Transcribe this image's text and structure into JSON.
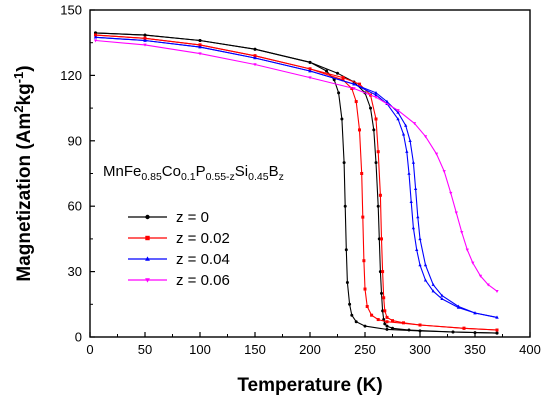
{
  "chart_data": {
    "type": "line",
    "title": "",
    "xlabel": "Temperature (K)",
    "ylabel": "Magnetization (Am",
    "ylabel_sup1": "2",
    "ylabel_mid": "kg",
    "ylabel_sup2": "-1",
    "ylabel_end": ")",
    "xlim": [
      0,
      400
    ],
    "ylim": [
      0,
      150
    ],
    "xticks": [
      0,
      50,
      100,
      150,
      200,
      250,
      300,
      350,
      400
    ],
    "yticks": [
      0,
      30,
      60,
      90,
      120,
      150
    ],
    "grid": false,
    "legend_position": "middle-left",
    "annotation": {
      "parts": [
        {
          "t": "MnFe",
          "sub": false
        },
        {
          "t": "0.85",
          "sub": true
        },
        {
          "t": "Co",
          "sub": false
        },
        {
          "t": "0.1",
          "sub": true
        },
        {
          "t": "P",
          "sub": false
        },
        {
          "t": "0.55-z",
          "sub": true
        },
        {
          "t": "Si",
          "sub": false
        },
        {
          "t": "0.45",
          "sub": true
        },
        {
          "t": "B",
          "sub": false
        },
        {
          "t": "z",
          "sub": true
        }
      ]
    },
    "series": [
      {
        "name": "z = 0",
        "color": "#000000",
        "marker": "circle",
        "branches": [
          {
            "x": [
              5,
              50,
              100,
              150,
              200,
              215,
              222,
              226,
              229,
              231,
              232,
              233,
              234,
              236,
              238,
              242,
              250,
              270,
              300,
              330,
              350,
              370
            ],
            "y": [
              139.5,
              138.5,
              136,
              132,
              126,
              122,
              118,
              112,
              100,
              80,
              60,
              40,
              25,
              15,
              10,
              7,
              5,
              3.5,
              2.8,
              2.3,
              2.0,
              1.8
            ]
          },
          {
            "x": [
              5,
              50,
              100,
              150,
              200,
              225,
              240,
              250,
              255,
              258,
              260,
              262,
              263,
              264,
              265,
              266,
              267,
              268,
              270,
              275,
              290,
              330,
              370
            ],
            "y": [
              139.5,
              138.5,
              136,
              132,
              126,
              121,
              117,
              112,
              105,
              95,
              80,
              60,
              45,
              30,
              20,
              12,
              8,
              6,
              5,
              4,
              3.2,
              2.3,
              1.8
            ]
          }
        ]
      },
      {
        "name": "z = 0.02",
        "color": "#ff0000",
        "marker": "square",
        "branches": [
          {
            "x": [
              5,
              50,
              100,
              150,
              200,
              230,
              238,
              242,
              245,
              247,
              248,
              249,
              250,
              252,
              256,
              262,
              270,
              300,
              340,
              370
            ],
            "y": [
              138.5,
              137,
              134,
              129,
              123,
              118,
              114,
              108,
              95,
              75,
              55,
              35,
              22,
              14,
              10,
              8,
              7,
              5.5,
              4,
              3.2
            ]
          },
          {
            "x": [
              5,
              50,
              100,
              150,
              200,
              230,
              245,
              255,
              260,
              262,
              264,
              265,
              266,
              267,
              268,
              270,
              275,
              285,
              300,
              340,
              370
            ],
            "y": [
              138.5,
              137,
              134,
              129,
              123,
              119,
              116,
              111,
              100,
              85,
              65,
              45,
              30,
              18,
              12,
              9,
              7.5,
              6.5,
              5.5,
              4,
              3.2
            ]
          }
        ]
      },
      {
        "name": "z = 0.04",
        "color": "#0000ff",
        "marker": "triangle",
        "branches": [
          {
            "x": [
              5,
              50,
              100,
              150,
              200,
              240,
              260,
              270,
              280,
              285,
              288,
              290,
              292,
              294,
              297,
              300,
              305,
              312,
              320,
              335,
              350,
              370
            ],
            "y": [
              137.5,
              136,
              133,
              128,
              122,
              116,
              111,
              107,
              100,
              93,
              85,
              75,
              62,
              50,
              40,
              33,
              26,
              21,
              17.5,
              13.5,
              11,
              9
            ]
          },
          {
            "x": [
              5,
              50,
              100,
              150,
              200,
              240,
              260,
              270,
              280,
              287,
              291,
              294,
              296,
              298,
              300,
              305,
              312,
              320,
              335,
              350,
              370
            ],
            "y": [
              137.5,
              136,
              133,
              128,
              122,
              116,
              112,
              108,
              103,
              97,
              90,
              80,
              68,
              55,
              45,
              33,
              24,
              19,
              14,
              11,
              9
            ]
          }
        ]
      },
      {
        "name": "z = 0.06",
        "color": "#ff00ff",
        "marker": "triangle-down",
        "branches": [
          {
            "x": [
              5,
              50,
              100,
              150,
              200,
              240,
              260,
              280,
              295,
              305,
              315,
              322,
              328,
              333,
              338,
              343,
              348,
              355,
              362,
              370
            ],
            "y": [
              136,
              134,
              130,
              125,
              119,
              114,
              110,
              104,
              98,
              92,
              84,
              76,
              66,
              57,
              48,
              40,
              34,
              28,
              24,
              21
            ]
          }
        ]
      }
    ]
  }
}
